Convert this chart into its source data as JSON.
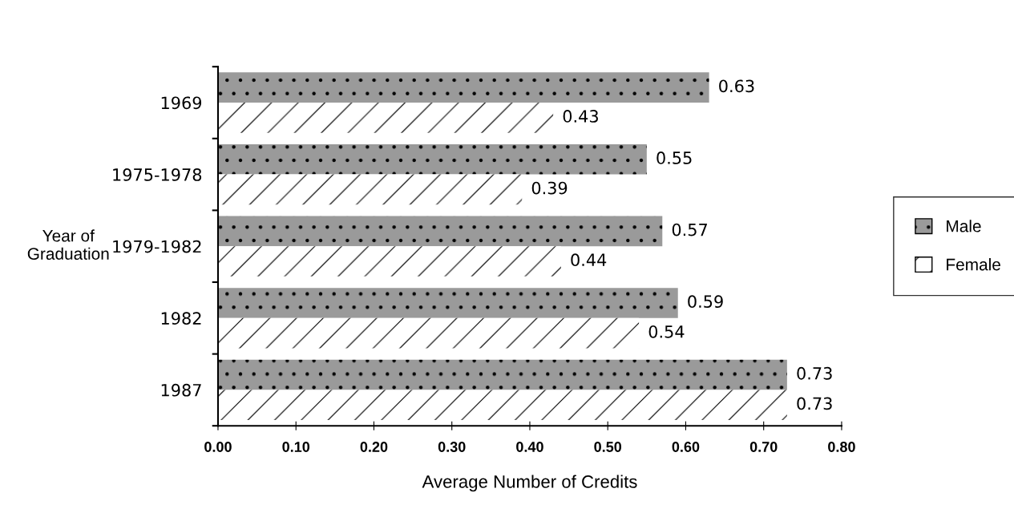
{
  "chart_data": {
    "type": "bar",
    "orientation": "horizontal",
    "categories": [
      "1969",
      "1975-1978",
      "1979-1982",
      "1982",
      "1987"
    ],
    "series": [
      {
        "name": "Male",
        "color": "#9a9a9a",
        "values": [
          0.63,
          0.55,
          0.57,
          0.59,
          0.73
        ]
      },
      {
        "name": "Female",
        "color": "#ffffff",
        "values": [
          0.43,
          0.39,
          0.44,
          0.54,
          0.73
        ]
      }
    ],
    "xlabel": "Average Number of Credits",
    "ylabel": "Year of Graduation",
    "xlim": [
      0,
      0.8
    ],
    "xticks": [
      {
        "value": 0,
        "label": "0.00"
      },
      {
        "value": 0.1,
        "label": "0.10"
      },
      {
        "value": 0.2,
        "label": "0.20"
      },
      {
        "value": 0.3,
        "label": "0.30"
      },
      {
        "value": 0.4,
        "label": "0.40"
      },
      {
        "value": 0.5,
        "label": "0.50"
      },
      {
        "value": 0.6,
        "label": "0.60"
      },
      {
        "value": 0.7,
        "label": "0.70"
      },
      {
        "value": 0.8,
        "label": "0.80"
      }
    ],
    "data_labels": true,
    "legend": "right",
    "grid": false
  }
}
